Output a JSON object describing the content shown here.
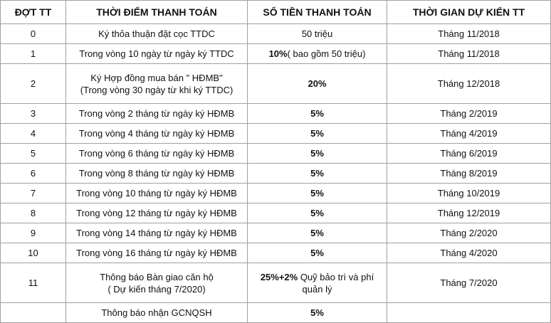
{
  "table": {
    "header": [
      "ĐỢT TT",
      "THỜI ĐIỂM THANH TOÁN",
      "SỐ TIỀN THANH TOÁN",
      "THỜI GIAN DỰ KIẾN TT"
    ],
    "rows": [
      {
        "stage": "0",
        "timing": [
          "Ký thỏa thuận đặt cọc TTDC"
        ],
        "amount": {
          "text": "50 triệu"
        },
        "expected": "Tháng 11/2018"
      },
      {
        "stage": "1",
        "timing": [
          "Trong vòng 10 ngày từ ngày ký TTDC"
        ],
        "amount": {
          "bold": "10%",
          "text": "( bao gồm 50 triệu)"
        },
        "expected": "Tháng 11/2018"
      },
      {
        "stage": "2",
        "timing": [
          "Ký Hợp đồng mua bán \" HĐMB\"",
          "(Trong vòng 30 ngày từ khi ký TTDC)"
        ],
        "amount": {
          "bold": "20%"
        },
        "expected": "Tháng 12/2018"
      },
      {
        "stage": "3",
        "timing": [
          "Trong vòng 2 tháng từ ngày ký HĐMB"
        ],
        "amount": {
          "bold": "5%"
        },
        "expected": "Tháng 2/2019"
      },
      {
        "stage": "4",
        "timing": [
          "Trong vòng 4 tháng từ ngày ký HĐMB"
        ],
        "amount": {
          "bold": "5%"
        },
        "expected": "Tháng 4/2019"
      },
      {
        "stage": "5",
        "timing": [
          "Trong vòng 6 tháng từ ngày ký HĐMB"
        ],
        "amount": {
          "bold": "5%"
        },
        "expected": "Tháng 6/2019"
      },
      {
        "stage": "6",
        "timing": [
          "Trong vòng 8 tháng từ ngày ký HĐMB"
        ],
        "amount": {
          "bold": "5%"
        },
        "expected": "Tháng 8/2019"
      },
      {
        "stage": "7",
        "timing": [
          "Trong vòng 10 tháng từ ngày ký HĐMB"
        ],
        "amount": {
          "bold": "5%"
        },
        "expected": "Tháng 10/2019"
      },
      {
        "stage": "8",
        "timing": [
          "Trong vòng 12 tháng từ ngày ký HĐMB"
        ],
        "amount": {
          "bold": "5%"
        },
        "expected": "Tháng 12/2019"
      },
      {
        "stage": "9",
        "timing": [
          "Trong vòng 14 tháng từ ngày ký HĐMB"
        ],
        "amount": {
          "bold": "5%"
        },
        "expected": "Tháng 2/2020"
      },
      {
        "stage": "10",
        "timing": [
          "Trong vòng 16 tháng từ ngày ký HĐMB"
        ],
        "amount": {
          "bold": "5%"
        },
        "expected": "Tháng 4/2020"
      },
      {
        "stage": "11",
        "timing": [
          "Thông báo Bàn giao căn hộ",
          "( Dự kiến tháng 7/2020)"
        ],
        "amount": {
          "bold": "25%+2%",
          "text": "Quỹ bảo trì và phí quản lý"
        },
        "expected": "Tháng 7/2020"
      },
      {
        "timing": [
          "Thông báo nhận GCNQSH"
        ],
        "amount": {
          "bold": "5%"
        }
      }
    ]
  }
}
